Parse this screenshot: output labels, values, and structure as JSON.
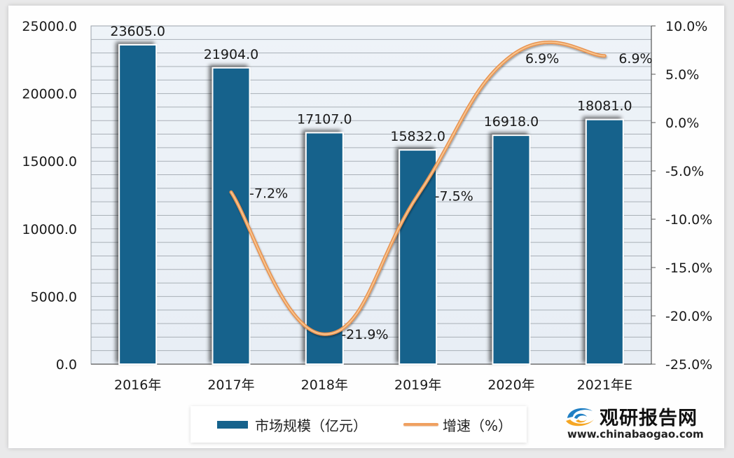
{
  "chart_data": {
    "type": "bar+line",
    "categories": [
      "2016年",
      "2017年",
      "2018年",
      "2019年",
      "2020年",
      "2021年E"
    ],
    "series": [
      {
        "name": "市场规模（亿元）",
        "type": "bar",
        "axis": "left",
        "color": "#15628c",
        "values": [
          23605.0,
          21904.0,
          17107.0,
          15832.0,
          16918.0,
          18081.0
        ],
        "labels": [
          "23605.0",
          "21904.0",
          "17107.0",
          "15832.0",
          "16918.0",
          "18081.0"
        ]
      },
      {
        "name": "增速（%）",
        "type": "line",
        "axis": "right",
        "color": "#f0a060",
        "values": [
          null,
          -7.2,
          -21.9,
          -7.5,
          6.9,
          6.9
        ],
        "labels": [
          "",
          "-7.2%",
          "-21.9%",
          "-7.5%",
          "6.9%",
          "6.9%"
        ]
      }
    ],
    "left_axis": {
      "range": [
        0,
        25000
      ],
      "ticks": [
        "25000.0",
        "20000.0",
        "15000.0",
        "10000.0",
        "5000.0",
        "0.0"
      ]
    },
    "right_axis": {
      "range": [
        -25,
        10
      ],
      "ticks": [
        "10.0%",
        "5.0%",
        "0.0%",
        "-5.0%",
        "-10.0%",
        "-15.0%",
        "-20.0%",
        "-25.0%"
      ]
    },
    "title": "",
    "xlabel": "",
    "ylabel": "",
    "grid": true,
    "legend_position": "bottom"
  },
  "legend": {
    "bar_label": "市场规模（亿元）",
    "line_label": "增速（%）"
  },
  "brand": {
    "name": "观研报告网",
    "url": "www.chinabaogao.com"
  }
}
